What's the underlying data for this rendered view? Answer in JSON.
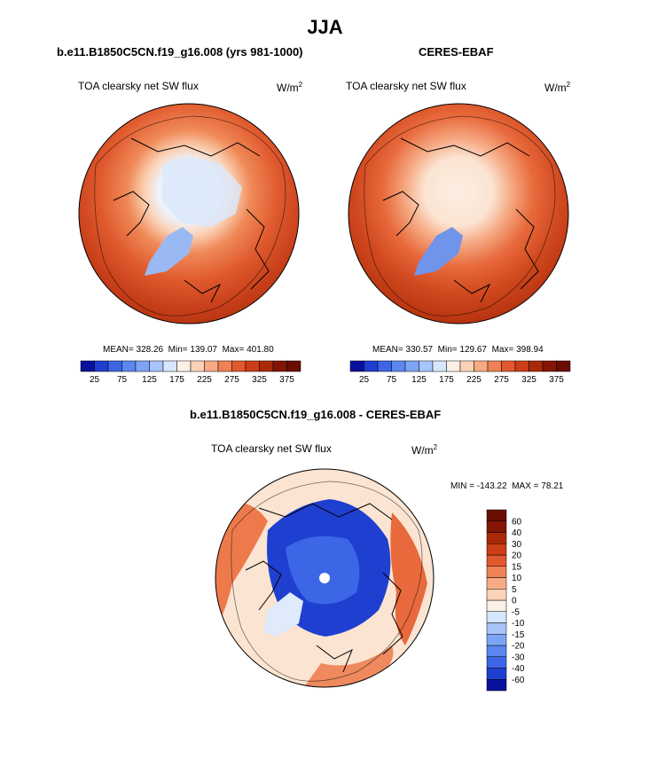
{
  "title": "JJA",
  "panels": [
    {
      "id": "model",
      "title": "b.e11.B1850C5CN.f19_g16.008 (yrs 981-1000)",
      "variable": "TOA clearsky net SW flux",
      "units_base": "W/m",
      "units_exp": "2",
      "stats": {
        "mean_label": "MEAN=",
        "mean": "328.26",
        "min_label": "Min=",
        "min": "139.07",
        "max_label": "Max=",
        "max": "401.80"
      }
    },
    {
      "id": "obs",
      "title": "CERES-EBAF",
      "variable": "TOA clearsky net SW flux",
      "units_base": "W/m",
      "units_exp": "2",
      "stats": {
        "mean_label": "MEAN=",
        "mean": "330.57",
        "min_label": "Min=",
        "min": "129.67",
        "max_label": "Max=",
        "max": "398.94"
      }
    }
  ],
  "diff": {
    "title": "b.e11.B1850C5CN.f19_g16.008 - CERES-EBAF",
    "variable": "TOA clearsky net SW flux",
    "units_base": "W/m",
    "units_exp": "2",
    "min_label": "MIN =",
    "min": "-143.22",
    "max_label": "MAX =",
    "max": "78.21"
  },
  "chart_data": [
    {
      "type": "heatmap",
      "projection": "north-polar-stereographic",
      "title": "b.e11.B1850C5CN.f19_g16.008 (yrs 981-1000)",
      "variable": "TOA clearsky net SW flux",
      "units": "W/m2",
      "mean": 328.26,
      "min": 139.07,
      "max": 401.8,
      "colorbar": {
        "levels": [
          25,
          50,
          75,
          100,
          125,
          150,
          175,
          200,
          225,
          250,
          275,
          300,
          325,
          350,
          375
        ],
        "tick_labels": [
          "25",
          "75",
          "125",
          "175",
          "225",
          "275",
          "325",
          "375"
        ],
        "colors": [
          "#08119b",
          "#1f3fd0",
          "#3d66e6",
          "#5b86f0",
          "#7ea4f6",
          "#a8c4fa",
          "#d6e6fc",
          "#fbf0e6",
          "#fbd2b6",
          "#f6ab85",
          "#ee8155",
          "#e2582e",
          "#cc3e17",
          "#aa2a08",
          "#841504",
          "#6a0e02"
        ]
      }
    },
    {
      "type": "heatmap",
      "projection": "north-polar-stereographic",
      "title": "CERES-EBAF",
      "variable": "TOA clearsky net SW flux",
      "units": "W/m2",
      "mean": 330.57,
      "min": 129.67,
      "max": 398.94,
      "colorbar": {
        "levels": [
          25,
          50,
          75,
          100,
          125,
          150,
          175,
          200,
          225,
          250,
          275,
          300,
          325,
          350,
          375
        ],
        "tick_labels": [
          "25",
          "75",
          "125",
          "175",
          "225",
          "275",
          "325",
          "375"
        ],
        "colors": [
          "#08119b",
          "#1f3fd0",
          "#3d66e6",
          "#5b86f0",
          "#7ea4f6",
          "#a8c4fa",
          "#d6e6fc",
          "#fbf0e6",
          "#fbd2b6",
          "#f6ab85",
          "#ee8155",
          "#e2582e",
          "#cc3e17",
          "#aa2a08",
          "#841504",
          "#6a0e02"
        ]
      }
    },
    {
      "type": "heatmap",
      "projection": "north-polar-stereographic",
      "title": "b.e11.B1850C5CN.f19_g16.008 - CERES-EBAF",
      "variable": "TOA clearsky net SW flux",
      "units": "W/m2",
      "min": -143.22,
      "max": 78.21,
      "colorbar": {
        "orientation": "vertical",
        "levels": [
          -60,
          -40,
          -30,
          -20,
          -15,
          -10,
          -5,
          0,
          5,
          10,
          15,
          20,
          30,
          40,
          60
        ],
        "tick_labels": [
          "-60",
          "-40",
          "-30",
          "-20",
          "-15",
          "-10",
          "-5",
          "0",
          "5",
          "10",
          "15",
          "20",
          "30",
          "40",
          "60"
        ],
        "colors": [
          "#08119b",
          "#1f3fd0",
          "#3d66e6",
          "#5b86f0",
          "#7ea4f6",
          "#a8c4fa",
          "#d6e6fc",
          "#fbf0e6",
          "#fbd2b6",
          "#f6ab85",
          "#ee8155",
          "#e2582e",
          "#cc3e17",
          "#aa2a08",
          "#841504",
          "#6a0e02"
        ]
      }
    }
  ]
}
